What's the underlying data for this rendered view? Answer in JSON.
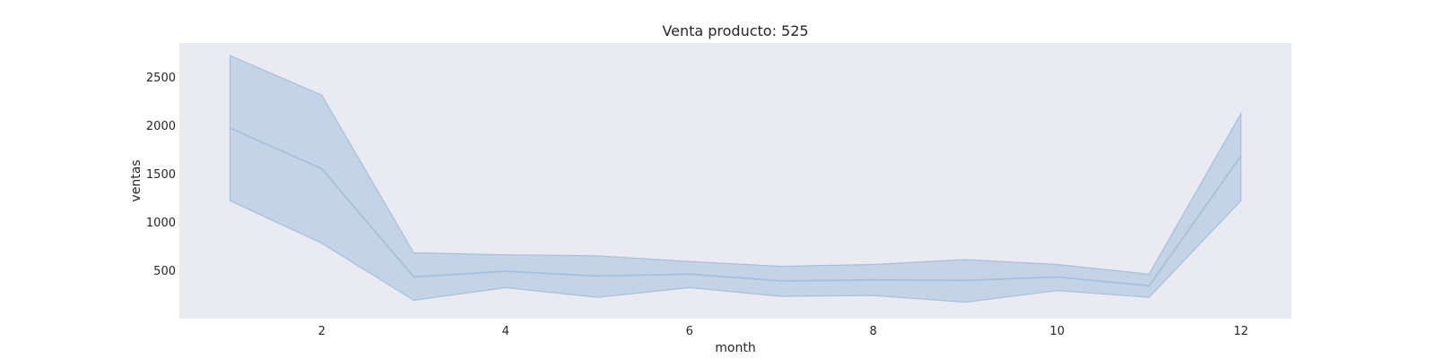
{
  "chart_data": {
    "type": "line",
    "title": "Venta producto: 525",
    "xlabel": "month",
    "ylabel": "ventas",
    "xlim": [
      0.45,
      12.55
    ],
    "ylim": [
      0,
      2850
    ],
    "xticks": [
      2,
      4,
      6,
      8,
      10,
      12
    ],
    "yticks": [
      500,
      1000,
      1500,
      2000,
      2500
    ],
    "grid": false,
    "colors": {
      "line": "#a6c0dc",
      "band": "#a6c0dc",
      "plot_bg": "#eaeaf2"
    },
    "series": [
      {
        "x": [
          1,
          2,
          3,
          4,
          5,
          6,
          7,
          8,
          9,
          10,
          11,
          12
        ],
        "values": [
          1970,
          1550,
          430,
          490,
          440,
          460,
          390,
          400,
          395,
          430,
          340,
          1680
        ],
        "ci_upper": [
          2720,
          2310,
          680,
          660,
          650,
          590,
          540,
          560,
          610,
          560,
          460,
          2120
        ],
        "ci_lower": [
          1220,
          780,
          190,
          320,
          220,
          320,
          230,
          240,
          170,
          290,
          220,
          1220
        ]
      }
    ]
  }
}
